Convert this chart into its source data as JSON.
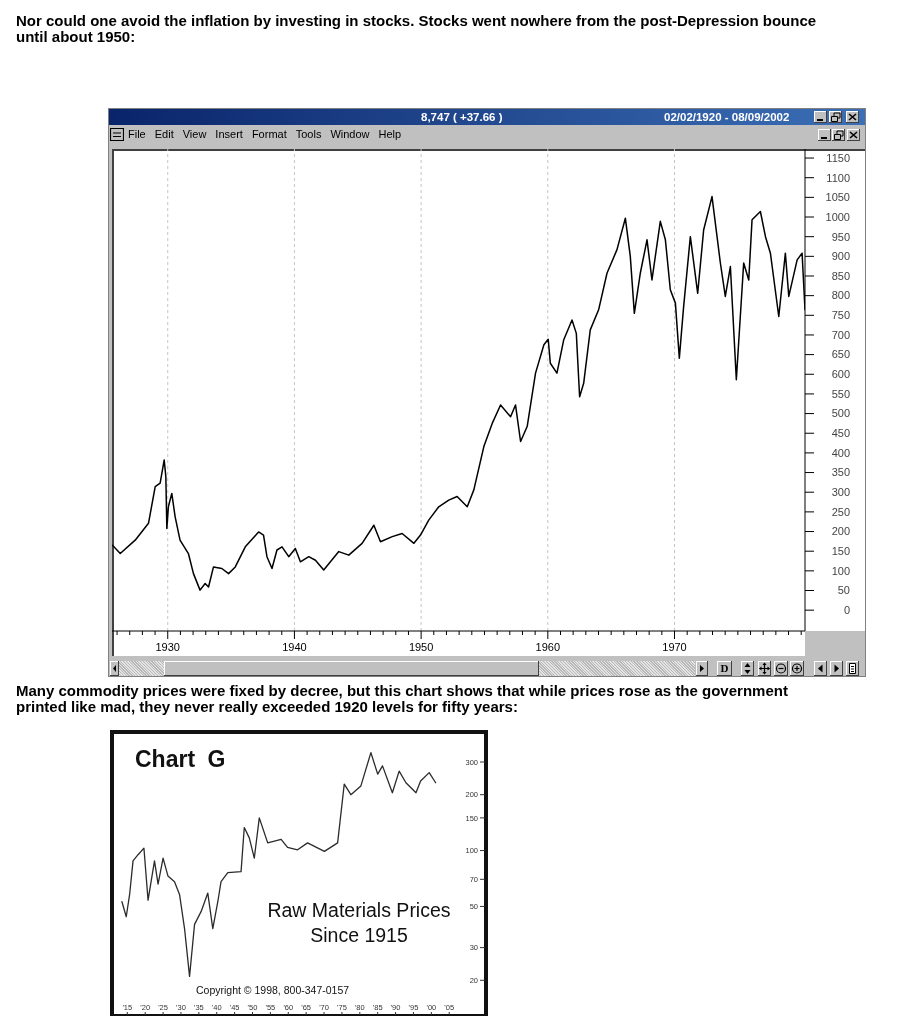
{
  "chart_data": [
    {
      "type": "line",
      "title": "Nor could one avoid the inflation by investing in stocks. Stocks went nowhere from the post-Depression bounce until about 1950:",
      "annotations": [
        "8,747 ( +37.66 )",
        "02/02/1920 - 08/09/2002",
        "File",
        "Edit",
        "View",
        "Insert",
        "Format",
        "Tools",
        "Window",
        "Help",
        "D"
      ],
      "x": [
        1925.64,
        1926.25,
        1927.43,
        1928.48,
        1929.01,
        1929.4,
        1929.72,
        1929.85,
        1929.93,
        1930.05,
        1930.32,
        1930.58,
        1930.97,
        1931.63,
        1932.03,
        1932.55,
        1932.95,
        1933.22,
        1933.61,
        1934.27,
        1934.8,
        1935.33,
        1936.12,
        1937.17,
        1937.56,
        1937.83,
        1938.23,
        1938.62,
        1939.02,
        1939.55,
        1940.07,
        1940.47,
        1941.13,
        1941.66,
        1942.31,
        1943.5,
        1944.29,
        1945.34,
        1946.27,
        1946.79,
        1947.72,
        1948.5,
        1949.43,
        1949.95,
        1950.6,
        1951.39,
        1952.18,
        1952.84,
        1953.64,
        1954.16,
        1954.95,
        1955.61,
        1956.27,
        1957.06,
        1957.45,
        1957.85,
        1958.37,
        1959.03,
        1959.69,
        1960.03,
        1960.2,
        1960.72,
        1961.25,
        1961.91,
        1962.25,
        1962.51,
        1962.83,
        1963.35,
        1964.01,
        1964.67,
        1965.46,
        1966.12,
        1966.51,
        1966.83,
        1967.3,
        1967.83,
        1968.22,
        1968.88,
        1969.28,
        1969.67,
        1970.07,
        1970.38,
        1970.72,
        1971.25,
        1971.83,
        1972.3,
        1972.96,
        1973.62,
        1974.01,
        1974.41,
        1974.88,
        1975.46,
        1975.86,
        1976.12,
        1976.78,
        1977.18,
        1977.57,
        1978.23,
        1978.75,
        1979.02,
        1979.68,
        1980.07,
        1980.3
      ],
      "series": [
        {
          "color": "#000000",
          "values": [
            165,
            144,
            178,
            221,
            314,
            323,
            382,
            339,
            208,
            263,
            297,
            238,
            178,
            144,
            93,
            51,
            68,
            59,
            110,
            106,
            93,
            110,
            161,
            199,
            191,
            136,
            106,
            153,
            161,
            136,
            157,
            123,
            136,
            127,
            102,
            149,
            140,
            170,
            216,
            174,
            187,
            195,
            170,
            191,
            229,
            263,
            280,
            289,
            263,
            306,
            416,
            475,
            522,
            492,
            522,
            429,
            467,
            603,
            675,
            689,
            628,
            603,
            687,
            738,
            704,
            543,
            577,
            713,
            764,
            857,
            917,
            997,
            900,
            755,
            857,
            942,
            840,
            989,
            942,
            815,
            781,
            641,
            772,
            950,
            806,
            967,
            1052,
            883,
            798,
            874,
            586,
            883,
            840,
            993,
            1014,
            950,
            908,
            747,
            908,
            798,
            891,
            908,
            764
          ]
        }
      ],
      "xlim": [
        1925.6,
        1980.3
      ],
      "xticks": [
        {
          "value": 1926,
          "label": null
        },
        {
          "value": 1927,
          "label": null
        },
        {
          "value": 1928,
          "label": null
        },
        {
          "value": 1929,
          "label": null
        },
        1930,
        {
          "value": 1931,
          "label": null
        },
        {
          "value": 1932,
          "label": null
        },
        {
          "value": 1933,
          "label": null
        },
        {
          "value": 1934,
          "label": null
        },
        {
          "value": 1935,
          "label": null
        },
        {
          "value": 1936,
          "label": null
        },
        {
          "value": 1937,
          "label": null
        },
        {
          "value": 1938,
          "label": null
        },
        {
          "value": 1939,
          "label": null
        },
        1940,
        {
          "value": 1941,
          "label": null
        },
        {
          "value": 1942,
          "label": null
        },
        {
          "value": 1943,
          "label": null
        },
        {
          "value": 1944,
          "label": null
        },
        {
          "value": 1945,
          "label": null
        },
        {
          "value": 1946,
          "label": null
        },
        {
          "value": 1947,
          "label": null
        },
        {
          "value": 1948,
          "label": null
        },
        {
          "value": 1949,
          "label": null
        },
        1950,
        {
          "value": 1951,
          "label": null
        },
        {
          "value": 1952,
          "label": null
        },
        {
          "value": 1953,
          "label": null
        },
        {
          "value": 1954,
          "label": null
        },
        {
          "value": 1955,
          "label": null
        },
        {
          "value": 1956,
          "label": null
        },
        {
          "value": 1957,
          "label": null
        },
        {
          "value": 1958,
          "label": null
        },
        {
          "value": 1959,
          "label": null
        },
        1960,
        {
          "value": 1961,
          "label": null
        },
        {
          "value": 1962,
          "label": null
        },
        {
          "value": 1963,
          "label": null
        },
        {
          "value": 1964,
          "label": null
        },
        {
          "value": 1965,
          "label": null
        },
        {
          "value": 1966,
          "label": null
        },
        {
          "value": 1967,
          "label": null
        },
        {
          "value": 1968,
          "label": null
        },
        {
          "value": 1969,
          "label": null
        },
        1970,
        {
          "value": 1971,
          "label": null
        },
        {
          "value": 1972,
          "label": null
        },
        {
          "value": 1973,
          "label": null
        },
        {
          "value": 1974,
          "label": null
        },
        {
          "value": 1975,
          "label": null
        },
        {
          "value": 1976,
          "label": null
        },
        {
          "value": 1977,
          "label": null
        },
        {
          "value": 1978,
          "label": null
        },
        {
          "value": 1979,
          "label": null
        },
        {
          "value": 1980,
          "label": null
        }
      ],
      "ylim": [
        -53,
        1173
      ],
      "yticks": [
        0,
        50,
        100,
        150,
        200,
        250,
        300,
        350,
        400,
        450,
        500,
        550,
        600,
        650,
        700,
        750,
        800,
        850,
        900,
        950,
        1000,
        1050,
        1100,
        1150
      ],
      "grid": "x"
    },
    {
      "type": "line",
      "title": "Chart G",
      "subtitle": "Raw Materials Prices Since 1915",
      "annotations": [
        "Many commodity prices were fixed by decree, but this chart shows that while prices rose as the government printed like mad, they never really exceeded 1920 levels for fifty years:",
        "Copyright © 1998, 800-347-0157"
      ],
      "x": [
        1913.5,
        1914.7,
        1915.65,
        1916.6,
        1918.0,
        1919.65,
        1920.8,
        1922.6,
        1923.6,
        1925.0,
        1926.35,
        1928.2,
        1929.6,
        1931.0,
        1932.4,
        1933.8,
        1935.65,
        1937.5,
        1938.9,
        1940.3,
        1941.2,
        1943.1,
        1946.8,
        1947.7,
        1949.1,
        1950.5,
        1951.9,
        1954.25,
        1958.0,
        1959.8,
        1962.6,
        1965.4,
        1970.1,
        1973.8,
        1975.65,
        1977.5,
        1980.3,
        1983.1,
        1985.0,
        1986.35,
        1989.1,
        1991.0,
        1992.9,
        1995.7,
        1997.0,
        1999.4,
        2001.2
      ],
      "series": [
        {
          "color": "#2b2b2b",
          "values": [
            53,
            44,
            58,
            88,
            95,
            103,
            54,
            88,
            66,
            91,
            73,
            68,
            58,
            38,
            21,
            40,
            47,
            59,
            38,
            53,
            68,
            76,
            77,
            133,
            117,
            91,
            150,
            110,
            115,
            104,
            101,
            110,
            99,
            110,
            228,
            200,
            223,
            337,
            258,
            286,
            205,
            268,
            232,
            205,
            237,
            263,
            232
          ]
        }
      ],
      "xlim": [
        1911,
        2015
      ],
      "xticks": [
        {
          "value": 1915,
          "label": "'15"
        },
        {
          "value": 1920,
          "label": "'20"
        },
        {
          "value": 1925,
          "label": "'25"
        },
        {
          "value": 1930,
          "label": "'30"
        },
        {
          "value": 1935,
          "label": "'35"
        },
        {
          "value": 1940,
          "label": "'40"
        },
        {
          "value": 1945,
          "label": "'45"
        },
        {
          "value": 1950,
          "label": "'50"
        },
        {
          "value": 1955,
          "label": "'55"
        },
        {
          "value": 1960,
          "label": "'60"
        },
        {
          "value": 1965,
          "label": "'65"
        },
        {
          "value": 1970,
          "label": "'70"
        },
        {
          "value": 1975,
          "label": "'75"
        },
        {
          "value": 1980,
          "label": "'80"
        },
        {
          "value": 1985,
          "label": "'85"
        },
        {
          "value": 1990,
          "label": "'90"
        },
        {
          "value": 1995,
          "label": "'95"
        },
        {
          "value": 2000,
          "label": "'00"
        },
        {
          "value": 2005,
          "label": "'05"
        }
      ],
      "ylim": [
        13,
        430
      ],
      "yticks": [
        20,
        30,
        50,
        70,
        100,
        150,
        200,
        300
      ],
      "log": "y"
    }
  ]
}
